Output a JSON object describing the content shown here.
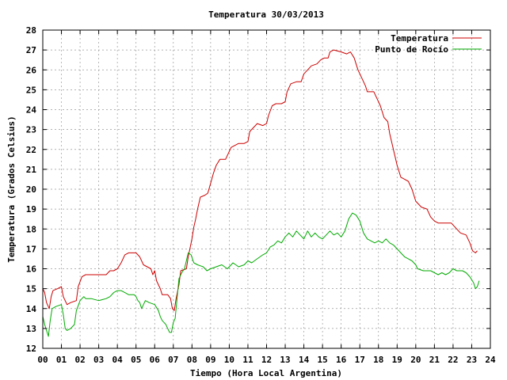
{
  "chart_data": {
    "type": "line",
    "title": "Temperatura 30/03/2013",
    "xlabel": "Tiempo (Hora Local Argentina)",
    "ylabel": "Temperatura (Grados Celsius)",
    "xlim": [
      0,
      24
    ],
    "ylim": [
      12,
      28
    ],
    "grid": true,
    "legend_position": "top-right",
    "x_ticks": [
      "00",
      "01",
      "02",
      "03",
      "04",
      "05",
      "06",
      "07",
      "08",
      "09",
      "10",
      "11",
      "12",
      "13",
      "14",
      "15",
      "16",
      "17",
      "18",
      "19",
      "20",
      "21",
      "22",
      "23",
      "24"
    ],
    "y_ticks": [
      "12",
      "13",
      "14",
      "15",
      "16",
      "17",
      "18",
      "19",
      "20",
      "21",
      "22",
      "23",
      "24",
      "25",
      "26",
      "27",
      "28"
    ],
    "series": [
      {
        "name": "Temperatura",
        "color": "#cc0000",
        "points": [
          [
            0.0,
            15.0
          ],
          [
            0.1,
            14.8
          ],
          [
            0.2,
            14.3
          ],
          [
            0.35,
            14.0
          ],
          [
            0.45,
            14.6
          ],
          [
            0.55,
            14.9
          ],
          [
            0.8,
            15.0
          ],
          [
            1.0,
            15.1
          ],
          [
            1.1,
            14.6
          ],
          [
            1.3,
            14.2
          ],
          [
            1.5,
            14.3
          ],
          [
            1.8,
            14.4
          ],
          [
            1.9,
            15.1
          ],
          [
            2.1,
            15.6
          ],
          [
            2.3,
            15.7
          ],
          [
            2.5,
            15.7
          ],
          [
            3.4,
            15.7
          ],
          [
            3.6,
            15.9
          ],
          [
            3.8,
            15.9
          ],
          [
            4.0,
            16.0
          ],
          [
            4.2,
            16.3
          ],
          [
            4.4,
            16.7
          ],
          [
            4.6,
            16.8
          ],
          [
            5.0,
            16.8
          ],
          [
            5.2,
            16.6
          ],
          [
            5.4,
            16.2
          ],
          [
            5.6,
            16.1
          ],
          [
            5.8,
            16.0
          ],
          [
            5.9,
            15.7
          ],
          [
            6.0,
            15.9
          ],
          [
            6.1,
            15.4
          ],
          [
            6.3,
            15.0
          ],
          [
            6.4,
            14.7
          ],
          [
            6.7,
            14.7
          ],
          [
            6.85,
            14.5
          ],
          [
            6.95,
            14.0
          ],
          [
            7.05,
            13.9
          ],
          [
            7.15,
            14.5
          ],
          [
            7.3,
            15.2
          ],
          [
            7.4,
            15.9
          ],
          [
            7.7,
            16.0
          ],
          [
            7.8,
            16.6
          ],
          [
            8.0,
            17.5
          ],
          [
            8.1,
            18.1
          ],
          [
            8.2,
            18.5
          ],
          [
            8.3,
            19.0
          ],
          [
            8.45,
            19.6
          ],
          [
            8.7,
            19.7
          ],
          [
            8.85,
            19.8
          ],
          [
            9.0,
            20.3
          ],
          [
            9.15,
            20.8
          ],
          [
            9.3,
            21.2
          ],
          [
            9.5,
            21.5
          ],
          [
            9.8,
            21.5
          ],
          [
            9.95,
            21.8
          ],
          [
            10.1,
            22.1
          ],
          [
            10.3,
            22.2
          ],
          [
            10.5,
            22.3
          ],
          [
            10.8,
            22.3
          ],
          [
            11.0,
            22.4
          ],
          [
            11.1,
            22.9
          ],
          [
            11.3,
            23.1
          ],
          [
            11.5,
            23.3
          ],
          [
            11.8,
            23.2
          ],
          [
            12.0,
            23.3
          ],
          [
            12.1,
            23.7
          ],
          [
            12.3,
            24.2
          ],
          [
            12.5,
            24.3
          ],
          [
            12.8,
            24.3
          ],
          [
            13.0,
            24.4
          ],
          [
            13.1,
            24.9
          ],
          [
            13.3,
            25.3
          ],
          [
            13.6,
            25.4
          ],
          [
            13.85,
            25.4
          ],
          [
            14.0,
            25.8
          ],
          [
            14.2,
            26.0
          ],
          [
            14.4,
            26.2
          ],
          [
            14.7,
            26.3
          ],
          [
            14.9,
            26.5
          ],
          [
            15.1,
            26.6
          ],
          [
            15.3,
            26.6
          ],
          [
            15.4,
            26.9
          ],
          [
            15.6,
            27.0
          ],
          [
            16.0,
            26.9
          ],
          [
            16.3,
            26.8
          ],
          [
            16.5,
            26.9
          ],
          [
            16.7,
            26.6
          ],
          [
            16.9,
            26.0
          ],
          [
            17.1,
            25.6
          ],
          [
            17.3,
            25.2
          ],
          [
            17.4,
            24.9
          ],
          [
            17.75,
            24.9
          ],
          [
            17.9,
            24.6
          ],
          [
            18.1,
            24.2
          ],
          [
            18.3,
            23.6
          ],
          [
            18.5,
            23.4
          ],
          [
            18.6,
            22.8
          ],
          [
            18.8,
            22.0
          ],
          [
            19.0,
            21.2
          ],
          [
            19.2,
            20.6
          ],
          [
            19.4,
            20.5
          ],
          [
            19.6,
            20.4
          ],
          [
            19.8,
            20.0
          ],
          [
            20.0,
            19.4
          ],
          [
            20.3,
            19.1
          ],
          [
            20.6,
            19.0
          ],
          [
            20.8,
            18.6
          ],
          [
            21.0,
            18.4
          ],
          [
            21.2,
            18.3
          ],
          [
            21.5,
            18.3
          ],
          [
            21.9,
            18.3
          ],
          [
            22.2,
            18.0
          ],
          [
            22.4,
            17.8
          ],
          [
            22.7,
            17.7
          ],
          [
            22.9,
            17.3
          ],
          [
            23.05,
            16.9
          ],
          [
            23.2,
            16.8
          ],
          [
            23.3,
            16.9
          ]
        ]
      },
      {
        "name": "Punto de Rocío",
        "color": "#00aa00",
        "points": [
          [
            0.0,
            13.6
          ],
          [
            0.1,
            13.2
          ],
          [
            0.2,
            12.9
          ],
          [
            0.3,
            12.6
          ],
          [
            0.4,
            13.4
          ],
          [
            0.5,
            14.0
          ],
          [
            0.7,
            14.1
          ],
          [
            1.0,
            14.2
          ],
          [
            1.1,
            13.7
          ],
          [
            1.2,
            13.0
          ],
          [
            1.3,
            12.9
          ],
          [
            1.5,
            13.0
          ],
          [
            1.7,
            13.2
          ],
          [
            1.8,
            13.9
          ],
          [
            2.0,
            14.4
          ],
          [
            2.2,
            14.6
          ],
          [
            2.3,
            14.5
          ],
          [
            2.6,
            14.5
          ],
          [
            3.0,
            14.4
          ],
          [
            3.4,
            14.5
          ],
          [
            3.6,
            14.6
          ],
          [
            3.8,
            14.8
          ],
          [
            4.0,
            14.9
          ],
          [
            4.2,
            14.9
          ],
          [
            4.4,
            14.8
          ],
          [
            4.6,
            14.7
          ],
          [
            4.9,
            14.7
          ],
          [
            5.0,
            14.6
          ],
          [
            5.1,
            14.4
          ],
          [
            5.2,
            14.3
          ],
          [
            5.3,
            14.0
          ],
          [
            5.4,
            14.2
          ],
          [
            5.5,
            14.4
          ],
          [
            5.7,
            14.3
          ],
          [
            6.0,
            14.2
          ],
          [
            6.2,
            13.9
          ],
          [
            6.3,
            13.6
          ],
          [
            6.4,
            13.4
          ],
          [
            6.5,
            13.3
          ],
          [
            6.6,
            13.2
          ],
          [
            6.7,
            13.0
          ],
          [
            6.8,
            12.8
          ],
          [
            6.9,
            12.8
          ],
          [
            7.0,
            13.3
          ],
          [
            7.1,
            13.5
          ],
          [
            7.2,
            14.5
          ],
          [
            7.3,
            15.5
          ],
          [
            7.45,
            15.8
          ],
          [
            7.6,
            16.0
          ],
          [
            7.8,
            16.8
          ],
          [
            7.95,
            16.7
          ],
          [
            8.1,
            16.3
          ],
          [
            8.3,
            16.2
          ],
          [
            8.6,
            16.1
          ],
          [
            8.8,
            15.9
          ],
          [
            9.0,
            16.0
          ],
          [
            9.3,
            16.1
          ],
          [
            9.6,
            16.2
          ],
          [
            9.9,
            16.0
          ],
          [
            10.2,
            16.3
          ],
          [
            10.5,
            16.1
          ],
          [
            10.8,
            16.2
          ],
          [
            11.0,
            16.4
          ],
          [
            11.2,
            16.3
          ],
          [
            11.5,
            16.5
          ],
          [
            11.8,
            16.7
          ],
          [
            12.0,
            16.8
          ],
          [
            12.2,
            17.1
          ],
          [
            12.4,
            17.2
          ],
          [
            12.6,
            17.4
          ],
          [
            12.8,
            17.3
          ],
          [
            13.0,
            17.6
          ],
          [
            13.2,
            17.8
          ],
          [
            13.4,
            17.6
          ],
          [
            13.6,
            17.9
          ],
          [
            13.8,
            17.7
          ],
          [
            14.0,
            17.5
          ],
          [
            14.2,
            17.9
          ],
          [
            14.4,
            17.6
          ],
          [
            14.6,
            17.8
          ],
          [
            14.8,
            17.6
          ],
          [
            15.0,
            17.5
          ],
          [
            15.2,
            17.7
          ],
          [
            15.4,
            17.9
          ],
          [
            15.6,
            17.7
          ],
          [
            15.8,
            17.8
          ],
          [
            16.0,
            17.6
          ],
          [
            16.2,
            17.9
          ],
          [
            16.4,
            18.5
          ],
          [
            16.6,
            18.8
          ],
          [
            16.8,
            18.7
          ],
          [
            17.0,
            18.4
          ],
          [
            17.2,
            17.8
          ],
          [
            17.4,
            17.5
          ],
          [
            17.6,
            17.4
          ],
          [
            17.8,
            17.3
          ],
          [
            18.0,
            17.4
          ],
          [
            18.2,
            17.3
          ],
          [
            18.4,
            17.5
          ],
          [
            18.6,
            17.3
          ],
          [
            18.8,
            17.2
          ],
          [
            19.0,
            17.0
          ],
          [
            19.2,
            16.8
          ],
          [
            19.4,
            16.6
          ],
          [
            19.6,
            16.5
          ],
          [
            19.8,
            16.4
          ],
          [
            20.0,
            16.2
          ],
          [
            20.1,
            16.0
          ],
          [
            20.4,
            15.9
          ],
          [
            20.8,
            15.9
          ],
          [
            21.0,
            15.8
          ],
          [
            21.2,
            15.7
          ],
          [
            21.4,
            15.8
          ],
          [
            21.6,
            15.7
          ],
          [
            21.8,
            15.8
          ],
          [
            22.0,
            16.0
          ],
          [
            22.2,
            15.9
          ],
          [
            22.5,
            15.9
          ],
          [
            22.7,
            15.8
          ],
          [
            22.9,
            15.6
          ],
          [
            23.1,
            15.3
          ],
          [
            23.2,
            15.0
          ],
          [
            23.3,
            15.1
          ],
          [
            23.4,
            15.4
          ]
        ]
      }
    ]
  }
}
